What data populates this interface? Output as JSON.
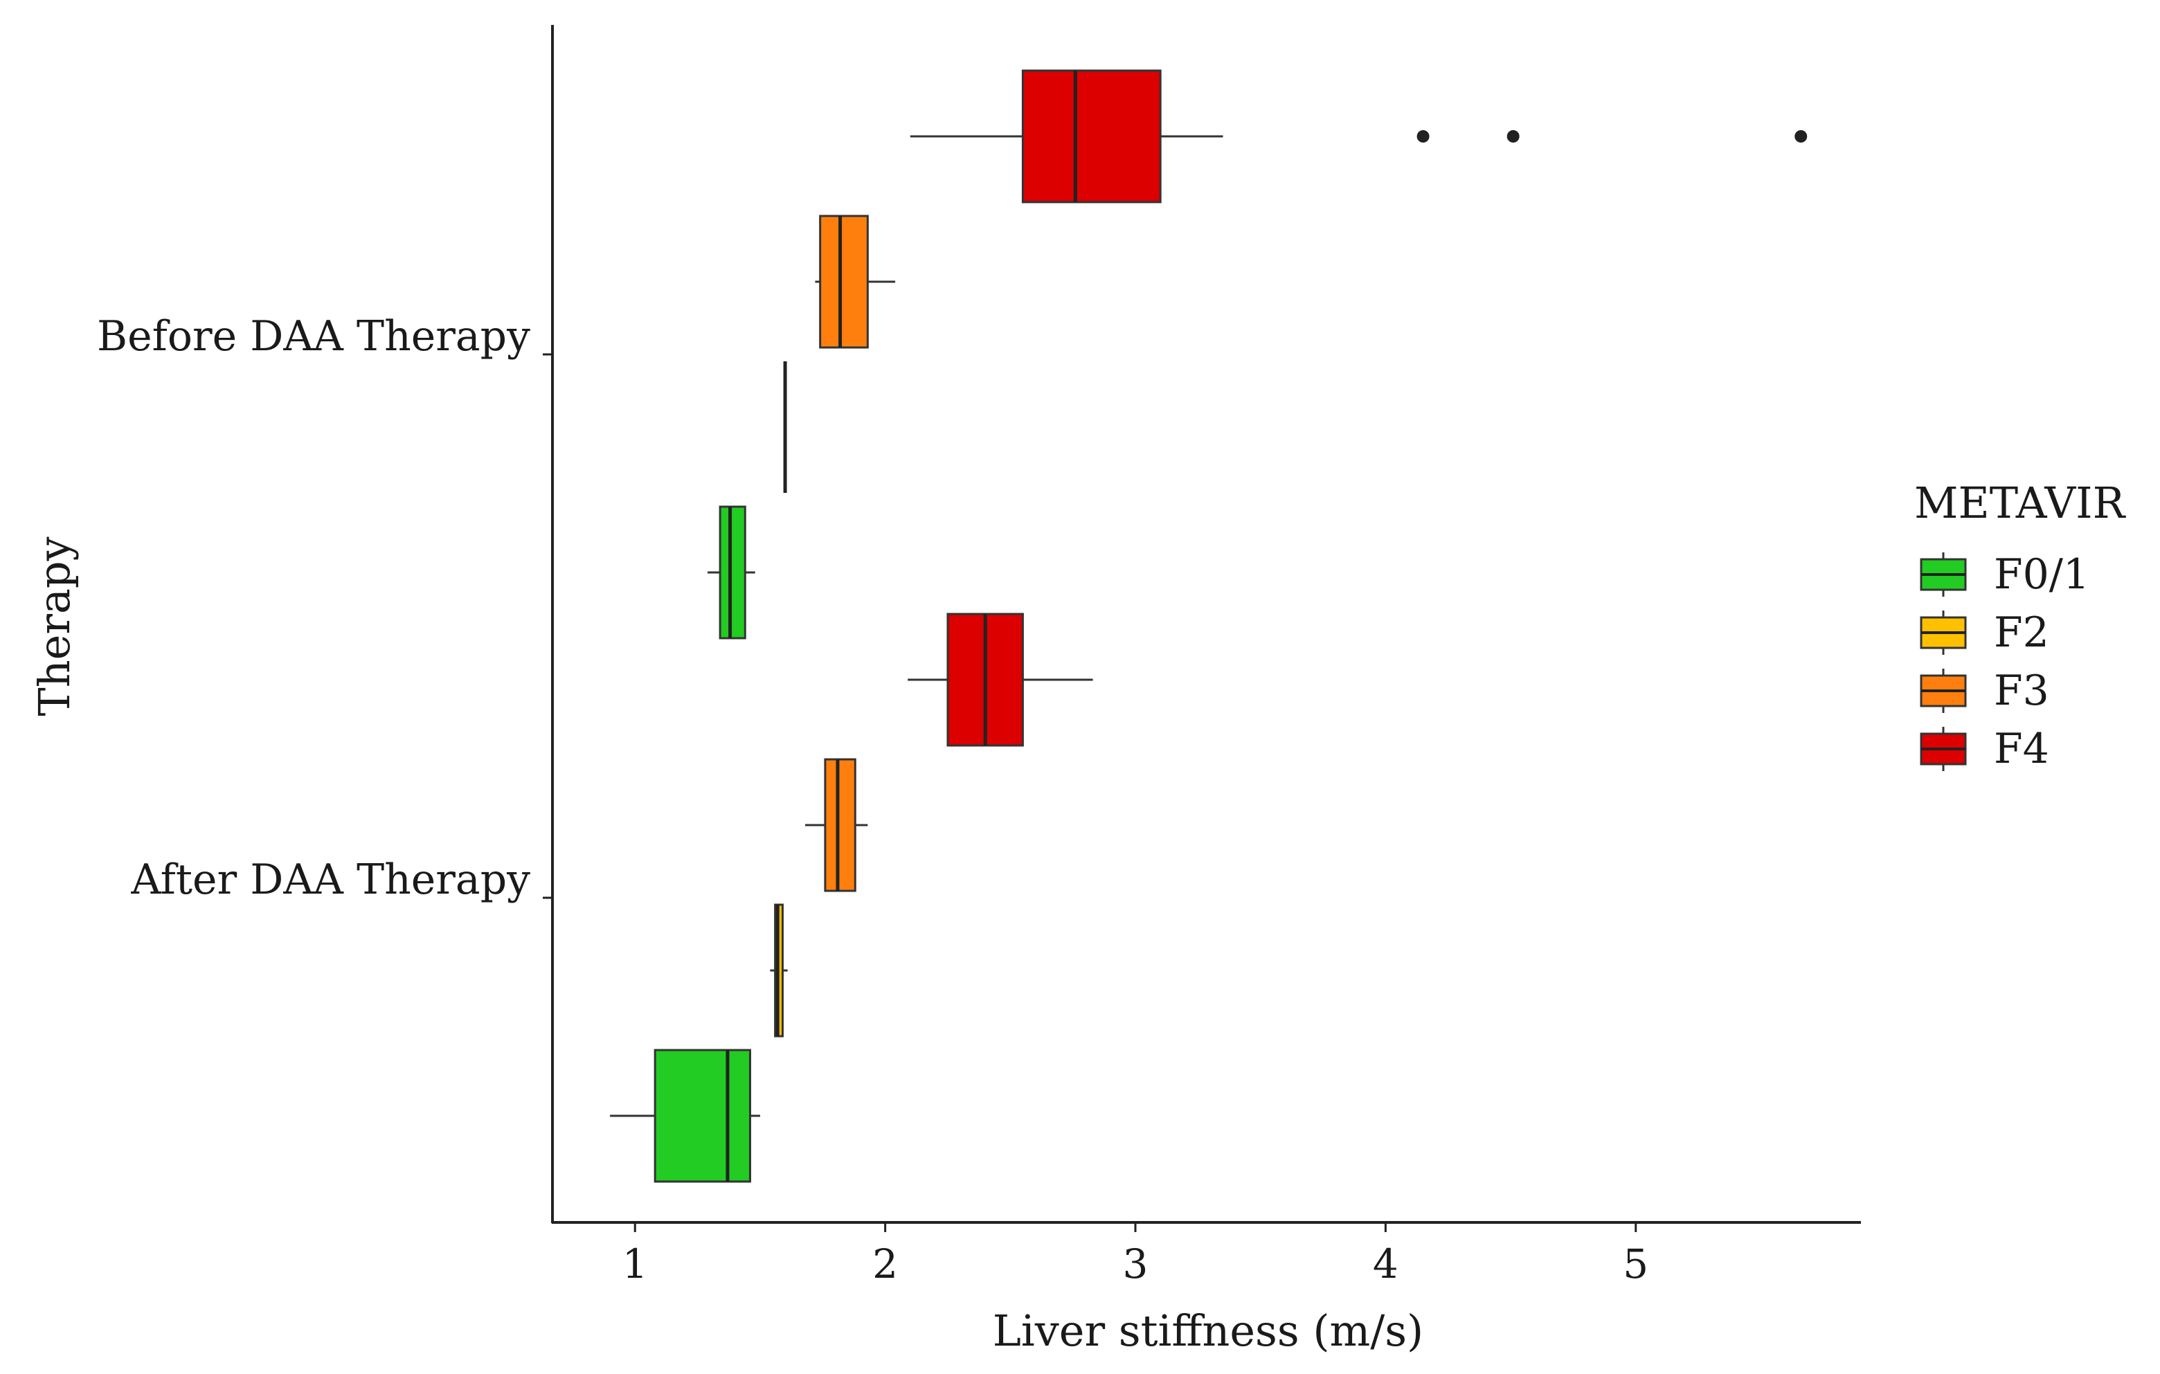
{
  "chart_data": {
    "type": "boxplot",
    "orientation": "horizontal",
    "title": "",
    "xlabel": "Liver stiffness (m/s)",
    "ylabel": "Therapy",
    "xlim": [
      0.67,
      5.9
    ],
    "x_ticks": [
      1,
      2,
      3,
      4,
      5
    ],
    "groups": [
      "Before DAA Therapy",
      "After DAA Therapy"
    ],
    "legend": {
      "title": "METAVIR",
      "position": "right",
      "entries": [
        {
          "label": "F0/1",
          "color": "#22cc22"
        },
        {
          "label": "F2",
          "color": "#ffc000"
        },
        {
          "label": "F3",
          "color": "#ff7f0e"
        },
        {
          "label": "F4",
          "color": "#dd0000"
        }
      ]
    },
    "boxes": [
      {
        "group": "Before DAA Therapy",
        "category": "F4",
        "whisker_low": 2.1,
        "q1": 2.55,
        "median": 2.76,
        "q3": 3.1,
        "whisker_high": 3.35,
        "outliers": [
          4.15,
          4.51,
          5.66
        ]
      },
      {
        "group": "Before DAA Therapy",
        "category": "F3",
        "whisker_low": 1.72,
        "q1": 1.74,
        "median": 1.82,
        "q3": 1.93,
        "whisker_high": 2.04,
        "outliers": []
      },
      {
        "group": "Before DAA Therapy",
        "category": "F2",
        "whisker_low": 1.6,
        "q1": 1.6,
        "median": 1.6,
        "q3": 1.6,
        "whisker_high": 1.6,
        "outliers": []
      },
      {
        "group": "Before DAA Therapy",
        "category": "F0/1",
        "whisker_low": 1.29,
        "q1": 1.34,
        "median": 1.38,
        "q3": 1.44,
        "whisker_high": 1.48,
        "outliers": []
      },
      {
        "group": "After DAA Therapy",
        "category": "F4",
        "whisker_low": 2.09,
        "q1": 2.25,
        "median": 2.4,
        "q3": 2.55,
        "whisker_high": 2.83,
        "outliers": []
      },
      {
        "group": "After DAA Therapy",
        "category": "F3",
        "whisker_low": 1.68,
        "q1": 1.76,
        "median": 1.81,
        "q3": 1.88,
        "whisker_high": 1.93,
        "outliers": []
      },
      {
        "group": "After DAA Therapy",
        "category": "F2",
        "whisker_low": 1.54,
        "q1": 1.56,
        "median": 1.57,
        "q3": 1.59,
        "whisker_high": 1.61,
        "outliers": []
      },
      {
        "group": "After DAA Therapy",
        "category": "F0/1",
        "whisker_low": 0.9,
        "q1": 1.08,
        "median": 1.37,
        "q3": 1.46,
        "whisker_high": 1.5,
        "outliers": []
      }
    ]
  }
}
